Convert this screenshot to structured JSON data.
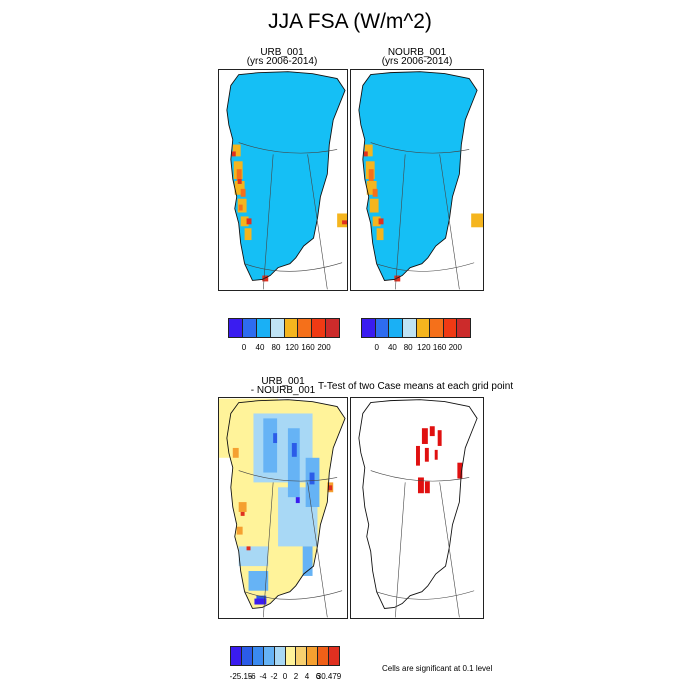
{
  "figure": {
    "title": "JJA FSA (W/m^2)"
  },
  "panels": {
    "urb": {
      "title1": "URB_001",
      "title2": "(yrs 2006-2014)"
    },
    "nourb": {
      "title1": "NOURB_001",
      "title2": "(yrs 2006-2014)"
    },
    "diff": {
      "title1": "URB_001",
      "title2": "- NOURB_001"
    },
    "ttest": {
      "title": "T-Test of two Case means at each grid point"
    }
  },
  "colorbars": {
    "top_left": {
      "labels": [
        "0",
        "40",
        "80",
        "120",
        "160",
        "200"
      ]
    },
    "top_right": {
      "labels": [
        "0",
        "40",
        "80",
        "120",
        "160",
        "200"
      ]
    },
    "bottom": {
      "labels": [
        "-25.15",
        "-6",
        "-4",
        "-2",
        "0",
        "2",
        "4",
        "6",
        "30.479"
      ]
    }
  },
  "note": "Cells are significant at 0.1 level",
  "chart_data": [
    {
      "type": "heatmap",
      "title": "URB_001 (yrs 2006-2014)",
      "levels": [
        0,
        40,
        80,
        120,
        160,
        200
      ],
      "colors": [
        "#3a1cf0",
        "#2e6cf0",
        "#1ab0f5",
        "#bfe3f5",
        "#f5b51e",
        "#f5701a",
        "#f03a14",
        "#cc2b2b"
      ]
    },
    {
      "type": "heatmap",
      "title": "NOURB_001 (yrs 2006-2014)",
      "levels": [
        0,
        40,
        80,
        120,
        160,
        200
      ],
      "colors": [
        "#3a1cf0",
        "#2e6cf0",
        "#1ab0f5",
        "#bfe3f5",
        "#f5b51e",
        "#f5701a",
        "#f03a14",
        "#cc2b2b"
      ]
    },
    {
      "type": "heatmap",
      "title": "URB_001 - NOURB_001",
      "levels": [
        -25.15,
        -6,
        -4,
        -2,
        0,
        2,
        4,
        6,
        30.479
      ],
      "colors": [
        "#3a1cf0",
        "#2b5ce8",
        "#3a8af0",
        "#66b3f5",
        "#a8d8f5",
        "#fff39a",
        "#f7d070",
        "#f5a030",
        "#f06018",
        "#e03020"
      ]
    },
    {
      "type": "heatmap",
      "title": "T-Test of two Case means at each grid point",
      "legend": "Cells are significant at 0.1 level",
      "colors": [
        "#e01010"
      ]
    }
  ]
}
